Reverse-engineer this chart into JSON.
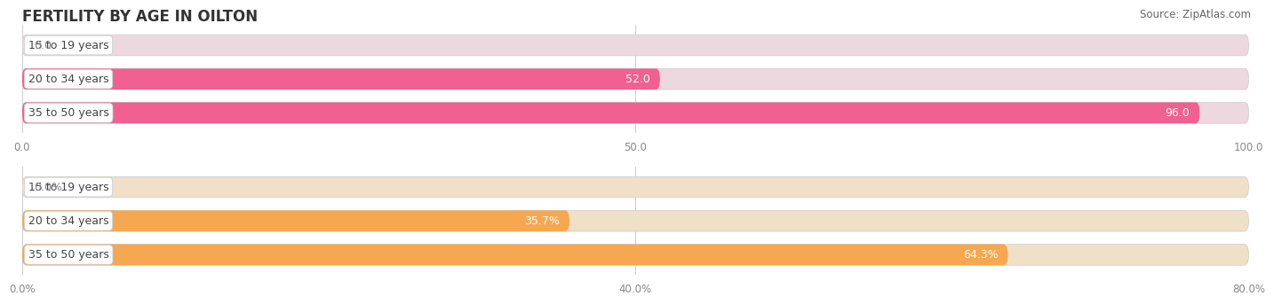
{
  "title": "FERTILITY BY AGE IN OILTON",
  "source": "Source: ZipAtlas.com",
  "top_chart": {
    "categories": [
      "15 to 19 years",
      "20 to 34 years",
      "35 to 50 years"
    ],
    "values": [
      0.0,
      52.0,
      96.0
    ],
    "xlim": [
      0,
      100
    ],
    "xticks": [
      0.0,
      50.0,
      100.0
    ],
    "xtick_labels": [
      "0.0",
      "50.0",
      "100.0"
    ],
    "bar_color": "#F06090",
    "bar_bg_color": "#EDD8E0",
    "label_inside_color": "#ffffff",
    "label_outside_color": "#888888",
    "value_suffix": ""
  },
  "bottom_chart": {
    "categories": [
      "15 to 19 years",
      "20 to 34 years",
      "35 to 50 years"
    ],
    "values": [
      0.0,
      35.7,
      64.3
    ],
    "xlim": [
      0,
      80
    ],
    "xticks": [
      0.0,
      40.0,
      80.0
    ],
    "xtick_labels": [
      "0.0%",
      "40.0%",
      "80.0%"
    ],
    "bar_color": "#F5A850",
    "bar_bg_color": "#F0E0C8",
    "label_inside_color": "#ffffff",
    "label_outside_color": "#888888",
    "value_suffix": "%"
  },
  "title_fontsize": 12,
  "source_fontsize": 8.5,
  "tick_fontsize": 8.5,
  "cat_label_fontsize": 9,
  "value_fontsize": 9,
  "bar_height": 0.62,
  "fig_bg_color": "#ffffff"
}
